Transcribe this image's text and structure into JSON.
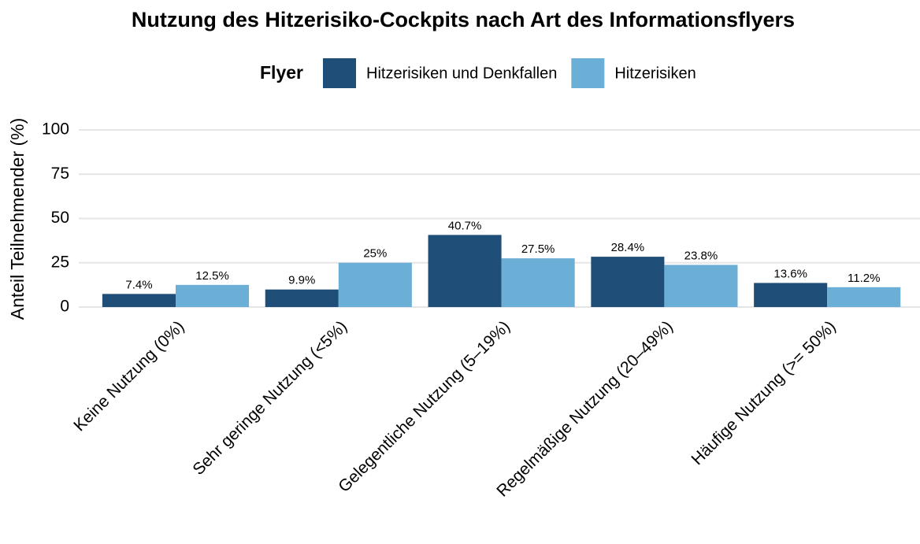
{
  "chart_data": {
    "type": "bar",
    "title": "Nutzung des Hitzerisiko-Cockpits nach Art des Informationsflyers",
    "y_label": "Anteil Teilnehmender (%)",
    "legend_title": "Flyer",
    "legend_position": "top",
    "grid": true,
    "categories": [
      "Keine Nutzung (0%)",
      "Sehr geringe Nutzung (<5%)",
      "Gelegentliche Nutzung (5–19%)",
      "Regelmäßige Nutzung (20–49%)",
      "Häufige Nutzung (>= 50%)"
    ],
    "series": [
      {
        "name": "Hitzerisiken und Denkfallen",
        "color": "#1f4e79",
        "values": [
          7.4,
          9.9,
          40.7,
          28.4,
          13.6
        ],
        "value_labels": [
          "7.4%",
          "9.9%",
          "40.7%",
          "28.4%",
          "13.6%"
        ]
      },
      {
        "name": "Hitzerisiken",
        "color": "#6baed6",
        "values": [
          12.5,
          25,
          27.5,
          23.8,
          11.2
        ],
        "value_labels": [
          "12.5%",
          "25%",
          "27.5%",
          "23.8%",
          "11.2%"
        ]
      }
    ],
    "ylim": [
      0,
      100
    ],
    "yticks": [
      0,
      25,
      50,
      75,
      100
    ]
  }
}
